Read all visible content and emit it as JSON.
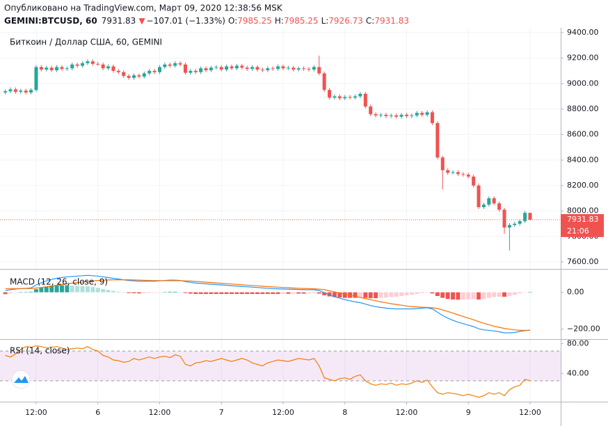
{
  "header": {
    "published": "Опубликовано на TradingView.com, Март 09, 2020 12:38:56 MSK",
    "symbol": "GEMINI:BTCUSD, 60",
    "price": "7931.83",
    "arrow": "▼",
    "change": "−107.01 (−1.33%)",
    "ohlc": [
      {
        "key": "O:",
        "value": "7985.25"
      },
      {
        "key": "H:",
        "value": "7985.25"
      },
      {
        "key": "L:",
        "value": "7926.73"
      },
      {
        "key": "C:",
        "value": "7931.83"
      }
    ]
  },
  "chart_data": [
    {
      "type": "candlestick",
      "title": "Биткоин / Доллар США, 60, GEMINI",
      "categories": [
        null,
        null,
        null,
        null,
        null,
        null,
        "12:00",
        null,
        null,
        null,
        null,
        null,
        null,
        null,
        null,
        null,
        null,
        null,
        "6",
        null,
        null,
        null,
        null,
        null,
        null,
        null,
        null,
        null,
        null,
        null,
        "12:00",
        null,
        null,
        null,
        null,
        null,
        null,
        null,
        null,
        null,
        null,
        null,
        "7",
        null,
        null,
        null,
        null,
        null,
        null,
        null,
        null,
        null,
        null,
        null,
        "12:00",
        null,
        null,
        null,
        null,
        null,
        null,
        null,
        null,
        null,
        null,
        null,
        "8",
        null,
        null,
        null,
        null,
        null,
        null,
        null,
        null,
        null,
        null,
        null,
        "12:00",
        null,
        null,
        null,
        null,
        null,
        null,
        null,
        null,
        null,
        null,
        null,
        "9",
        null,
        null,
        null,
        null,
        null,
        null,
        null,
        null,
        null,
        null,
        null,
        "12:00"
      ],
      "open": [
        8930,
        8940,
        8955,
        8935,
        8945,
        8930,
        8950,
        9130,
        9110,
        9125,
        9105,
        9130,
        9115,
        9120,
        9150,
        9140,
        9160,
        9175,
        9155,
        9150,
        9120,
        9135,
        9100,
        9090,
        9060,
        9045,
        9065,
        9055,
        9080,
        9100,
        9090,
        9130,
        9150,
        9140,
        9160,
        9150,
        9085,
        9100,
        9090,
        9120,
        9105,
        9125,
        9130,
        9110,
        9135,
        9120,
        9140,
        9125,
        9115,
        9130,
        9110,
        9105,
        9120,
        9115,
        9135,
        9120,
        9125,
        9110,
        9120,
        9115,
        9110,
        9130,
        9080,
        8950,
        8890,
        8900,
        8885,
        8895,
        8890,
        8900,
        8920,
        8820,
        8760,
        8750,
        8755,
        8745,
        8750,
        8740,
        8755,
        8745,
        8750,
        8770,
        8755,
        8775,
        8690,
        8420,
        8320,
        8300,
        8305,
        8290,
        8285,
        8270,
        8200,
        8030,
        8050,
        8100,
        8060,
        8010,
        7870,
        7890,
        7900,
        7920,
        7985.25
      ],
      "high": [
        8955,
        8970,
        8970,
        8960,
        8960,
        8965,
        9145,
        9145,
        9140,
        9140,
        9145,
        9145,
        9135,
        9165,
        9165,
        9175,
        9190,
        9190,
        9170,
        9165,
        9150,
        9150,
        9115,
        9105,
        9075,
        9080,
        9080,
        9095,
        9115,
        9115,
        9145,
        9165,
        9165,
        9175,
        9175,
        9165,
        9115,
        9115,
        9135,
        9135,
        9140,
        9145,
        9145,
        9150,
        9150,
        9155,
        9155,
        9140,
        9145,
        9145,
        9125,
        9135,
        9135,
        9150,
        9150,
        9140,
        9140,
        9135,
        9135,
        9130,
        9145,
        9220,
        9095,
        8965,
        8915,
        8915,
        8910,
        8910,
        8915,
        8935,
        8935,
        8835,
        8775,
        8770,
        8770,
        8765,
        8765,
        8770,
        8770,
        8765,
        8785,
        8785,
        8790,
        8790,
        8705,
        8435,
        8335,
        8320,
        8320,
        8305,
        8300,
        8285,
        8215,
        8065,
        8115,
        8115,
        8075,
        8025,
        7905,
        7915,
        7935,
        8000,
        7985.25
      ],
      "low": [
        8915,
        8925,
        8920,
        8920,
        8915,
        8915,
        8935,
        9095,
        9095,
        9090,
        9090,
        9100,
        9100,
        9105,
        9125,
        9125,
        9145,
        9140,
        9140,
        9105,
        9105,
        9085,
        9075,
        9045,
        9030,
        9030,
        9040,
        9040,
        9065,
        9075,
        9075,
        9115,
        9125,
        9125,
        9135,
        9070,
        9070,
        9075,
        9075,
        9090,
        9090,
        9110,
        9095,
        9095,
        9105,
        9105,
        9110,
        9100,
        9100,
        9095,
        9090,
        9090,
        9100,
        9100,
        9105,
        9105,
        9095,
        9095,
        9100,
        9095,
        9095,
        9065,
        8935,
        8875,
        8875,
        8870,
        8870,
        8875,
        8875,
        8885,
        8805,
        8745,
        8735,
        8735,
        8730,
        8730,
        8725,
        8725,
        8730,
        8730,
        8735,
        8740,
        8740,
        8675,
        8405,
        8170,
        8285,
        8285,
        8275,
        8270,
        8255,
        8185,
        8015,
        8015,
        8035,
        8045,
        7995,
        7820,
        7690,
        7875,
        7885,
        7905,
        7926.73
      ],
      "close": [
        8940,
        8955,
        8935,
        8945,
        8930,
        8950,
        9130,
        9110,
        9125,
        9105,
        9130,
        9115,
        9120,
        9150,
        9140,
        9160,
        9175,
        9155,
        9150,
        9120,
        9135,
        9100,
        9090,
        9060,
        9045,
        9065,
        9055,
        9080,
        9100,
        9090,
        9130,
        9150,
        9140,
        9160,
        9150,
        9085,
        9100,
        9090,
        9120,
        9105,
        9125,
        9130,
        9110,
        9135,
        9120,
        9140,
        9125,
        9115,
        9130,
        9110,
        9105,
        9120,
        9115,
        9135,
        9120,
        9125,
        9110,
        9120,
        9115,
        9110,
        9130,
        9080,
        8950,
        8890,
        8900,
        8885,
        8895,
        8890,
        8900,
        8920,
        8820,
        8760,
        8750,
        8755,
        8745,
        8750,
        8740,
        8755,
        8745,
        8750,
        8770,
        8755,
        8775,
        8690,
        8420,
        8320,
        8300,
        8305,
        8290,
        8285,
        8270,
        8200,
        8030,
        8050,
        8100,
        8060,
        8010,
        7870,
        7890,
        7900,
        7920,
        7985.25,
        7931.83
      ],
      "up_color": "#26a69a",
      "down_color": "#ef5350",
      "last": {
        "value": 7931.83,
        "label": "7931.83"
      },
      "countdown": "21:06",
      "ylim": [
        7545,
        9438
      ],
      "yticks": [
        {
          "value": 7600,
          "label": "7600.00"
        },
        {
          "value": 7800,
          "label": "7800.00"
        },
        {
          "value": 8000,
          "label": "8000.00"
        },
        {
          "value": 8200,
          "label": "8200.00"
        },
        {
          "value": 8400,
          "label": "8400.00"
        },
        {
          "value": 8600,
          "label": "8600.00"
        },
        {
          "value": 8800,
          "label": "8800.00"
        },
        {
          "value": 9000,
          "label": "9000.00"
        },
        {
          "value": 9200,
          "label": "9200.00"
        },
        {
          "value": 9400,
          "label": "9400.00"
        }
      ],
      "grid": true
    },
    {
      "type": "line",
      "title": "MACD (12, 26, close, 9)",
      "series": [
        {
          "color": "#2196f3",
          "values": [
            10,
            14,
            18,
            20,
            22,
            24,
            40,
            52,
            62,
            70,
            76,
            80,
            84,
            86,
            88,
            90,
            92,
            90,
            88,
            84,
            80,
            76,
            72,
            68,
            64,
            62,
            60,
            60,
            60,
            60,
            62,
            64,
            66,
            66,
            64,
            58,
            54,
            50,
            48,
            46,
            44,
            42,
            40,
            38,
            36,
            34,
            32,
            30,
            28,
            26,
            24,
            22,
            20,
            19,
            18,
            17,
            16,
            15,
            14,
            14,
            14,
            10,
            -2,
            -14,
            -24,
            -32,
            -40,
            -46,
            -52,
            -56,
            -64,
            -72,
            -78,
            -82,
            -86,
            -88,
            -90,
            -90,
            -90,
            -90,
            -88,
            -86,
            -84,
            -90,
            -108,
            -126,
            -140,
            -152,
            -162,
            -170,
            -178,
            -186,
            -198,
            -204,
            -206,
            -210,
            -214,
            -220,
            -220,
            -218,
            -212,
            -208,
            -205
          ]
        },
        {
          "color": "#ff6d00",
          "values": [
            20,
            20,
            20,
            20,
            21,
            21,
            23,
            26,
            30,
            34,
            38,
            42,
            46,
            50,
            53,
            56,
            59,
            62,
            64,
            66,
            67,
            68,
            68,
            68,
            68,
            67,
            66,
            65,
            64,
            63,
            63,
            63,
            63,
            63,
            63,
            62,
            61,
            59,
            57,
            55,
            53,
            51,
            49,
            47,
            45,
            43,
            41,
            39,
            37,
            35,
            33,
            31,
            29,
            28,
            26,
            25,
            23,
            22,
            21,
            20,
            19,
            17,
            14,
            8,
            2,
            -4,
            -10,
            -16,
            -22,
            -28,
            -34,
            -40,
            -46,
            -52,
            -57,
            -62,
            -66,
            -70,
            -74,
            -77,
            -79,
            -81,
            -82,
            -84,
            -88,
            -96,
            -104,
            -113,
            -122,
            -131,
            -140,
            -149,
            -159,
            -168,
            -176,
            -184,
            -190,
            -196,
            -200,
            -204,
            -206,
            -206,
            -206
          ]
        }
      ],
      "histogram": {
        "values": [
          -10,
          -6,
          -2,
          0,
          1,
          3,
          17,
          26,
          32,
          36,
          38,
          38,
          38,
          36,
          35,
          34,
          33,
          28,
          24,
          18,
          13,
          8,
          4,
          0,
          -4,
          -5,
          -6,
          -5,
          -4,
          -3,
          -1,
          1,
          3,
          3,
          1,
          -4,
          -7,
          -9,
          -9,
          -9,
          -9,
          -9,
          -9,
          -9,
          -9,
          -9,
          -9,
          -9,
          -9,
          -9,
          -9,
          -9,
          -9,
          -9,
          -8,
          -8,
          -7,
          -7,
          -7,
          -6,
          -5,
          -7,
          -16,
          -22,
          -26,
          -28,
          -30,
          -30,
          -30,
          -28,
          -30,
          -32,
          -32,
          -30,
          -29,
          -26,
          -24,
          -20,
          -16,
          -13,
          -9,
          -5,
          -2,
          -6,
          -20,
          -30,
          -36,
          -39,
          -40,
          -39,
          -38,
          -37,
          -39,
          -36,
          -30,
          -26,
          -24,
          -24,
          -20,
          -14,
          -6,
          -2,
          1
        ],
        "colors": {
          "up_rising": "#26a69a",
          "up_falling": "#b2dfdb",
          "down_falling": "#ef5350",
          "down_rising": "#ffcdd2"
        }
      },
      "ylim": [
        -254,
        123
      ],
      "yticks": [
        {
          "value": -200,
          "label": "−200.00"
        },
        {
          "value": 0,
          "label": "0.00"
        }
      ]
    },
    {
      "type": "line",
      "title": "RSI (14, close)",
      "series": [
        {
          "color": "#f57c00",
          "values": [
            64,
            62,
            66,
            72,
            76,
            75,
            77,
            76,
            74,
            75,
            76,
            74,
            72,
            73,
            74,
            73,
            76,
            72,
            70,
            64,
            62,
            58,
            57,
            55,
            56,
            60,
            58,
            60,
            62,
            60,
            62,
            63,
            61,
            65,
            63,
            52,
            50,
            54,
            55,
            57,
            56,
            58,
            60,
            58,
            56,
            58,
            60,
            58,
            54,
            52,
            50,
            54,
            56,
            58,
            57,
            56,
            58,
            60,
            59,
            58,
            60,
            50,
            34,
            32,
            30,
            33,
            34,
            32,
            36,
            38,
            30,
            26,
            24,
            26,
            25,
            27,
            24,
            26,
            25,
            27,
            30,
            28,
            31,
            22,
            14,
            12,
            14,
            13,
            12,
            10,
            12,
            10,
            8,
            10,
            14,
            12,
            14,
            10,
            18,
            22,
            24,
            32,
            30
          ]
        }
      ],
      "bands": [
        30,
        70
      ],
      "band_color": "#9c27b0",
      "ylim": [
        2,
        85
      ],
      "yticks": [
        {
          "value": 40,
          "label": "40.00"
        },
        {
          "value": 80,
          "label": "80.00"
        }
      ]
    }
  ]
}
